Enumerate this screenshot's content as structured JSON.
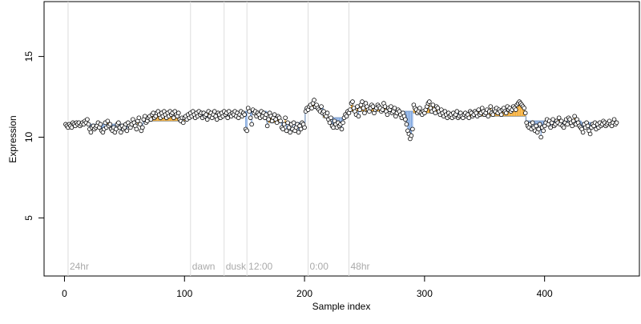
{
  "chart_data": {
    "type": "step-scatter",
    "xlabel": "Sample index",
    "ylabel": "Expression",
    "xlim": [
      -17,
      479
    ],
    "ylim": [
      1.4,
      18.4
    ],
    "xticks": [
      0,
      100,
      200,
      300,
      400
    ],
    "yticks": [
      5,
      10,
      15
    ],
    "up_color": "#f5a623",
    "down_color": "#7ea6e0",
    "step_color": "#8fa8c8",
    "point_fill": "#ffffff",
    "annotations": [
      {
        "x": 3,
        "label": "24hr"
      },
      {
        "x": 105,
        "label": "dawn"
      },
      {
        "x": 133,
        "label": "dusk"
      },
      {
        "x": 152,
        "label": "12:00"
      },
      {
        "x": 203,
        "label": "0:00"
      },
      {
        "x": 237,
        "label": "48hr"
      }
    ],
    "steps": [
      {
        "from": 0.5,
        "to": 65.5,
        "value": 10.8
      },
      {
        "from": 65.5,
        "to": 100.5,
        "value": 11.0
      },
      {
        "from": 100.5,
        "to": 150.5,
        "value": 11.4
      },
      {
        "from": 150.5,
        "to": 168.5,
        "value": 11.6
      },
      {
        "from": 168.5,
        "to": 200.5,
        "value": 10.9
      },
      {
        "from": 200.5,
        "to": 215.5,
        "value": 11.8
      },
      {
        "from": 215.5,
        "to": 235.5,
        "value": 11.2
      },
      {
        "from": 235.5,
        "to": 290.5,
        "value": 11.6
      },
      {
        "from": 290.5,
        "to": 330.5,
        "value": 11.5
      },
      {
        "from": 330.5,
        "to": 384.5,
        "value": 11.3
      },
      {
        "from": 384.5,
        "to": 430.5,
        "value": 11.0
      },
      {
        "from": 430.5,
        "to": 460.5,
        "value": 10.9
      }
    ],
    "x": [
      1,
      2,
      3,
      4,
      5,
      6,
      7,
      8,
      9,
      10,
      11,
      12,
      13,
      14,
      15,
      16,
      17,
      18,
      19,
      20,
      21,
      22,
      23,
      24,
      25,
      26,
      27,
      28,
      29,
      30,
      31,
      32,
      33,
      34,
      35,
      36,
      37,
      38,
      39,
      40,
      41,
      42,
      43,
      44,
      45,
      46,
      47,
      48,
      49,
      50,
      51,
      52,
      53,
      54,
      55,
      56,
      57,
      58,
      59,
      60,
      61,
      62,
      63,
      64,
      65,
      66,
      67,
      68,
      69,
      70,
      71,
      72,
      73,
      74,
      75,
      76,
      77,
      78,
      79,
      80,
      81,
      82,
      83,
      84,
      85,
      86,
      87,
      88,
      89,
      90,
      91,
      92,
      93,
      94,
      95,
      96,
      97,
      98,
      99,
      100,
      101,
      102,
      103,
      104,
      105,
      106,
      107,
      108,
      109,
      110,
      111,
      112,
      113,
      114,
      115,
      116,
      117,
      118,
      119,
      120,
      121,
      122,
      123,
      124,
      125,
      126,
      127,
      128,
      129,
      130,
      131,
      132,
      133,
      134,
      135,
      136,
      137,
      138,
      139,
      140,
      141,
      142,
      143,
      144,
      145,
      146,
      147,
      148,
      149,
      150,
      151,
      152,
      153,
      154,
      155,
      156,
      157,
      158,
      159,
      160,
      161,
      162,
      163,
      164,
      165,
      166,
      167,
      168,
      169,
      170,
      171,
      172,
      173,
      174,
      175,
      176,
      177,
      178,
      179,
      180,
      181,
      182,
      183,
      184,
      185,
      186,
      187,
      188,
      189,
      190,
      191,
      192,
      193,
      194,
      195,
      196,
      197,
      198,
      199,
      200,
      201,
      202,
      203,
      204,
      205,
      206,
      207,
      208,
      209,
      210,
      211,
      212,
      213,
      214,
      215,
      216,
      217,
      218,
      219,
      220,
      221,
      222,
      223,
      224,
      225,
      226,
      227,
      228,
      229,
      230,
      231,
      232,
      233,
      234,
      235,
      236,
      237,
      238,
      239,
      240,
      241,
      242,
      243,
      244,
      245,
      246,
      247,
      248,
      249,
      250,
      251,
      252,
      253,
      254,
      255,
      256,
      257,
      258,
      259,
      260,
      261,
      262,
      263,
      264,
      265,
      266,
      267,
      268,
      269,
      270,
      271,
      272,
      273,
      274,
      275,
      276,
      277,
      278,
      279,
      280,
      281,
      282,
      283,
      284,
      285,
      286,
      287,
      288,
      289,
      290,
      291,
      292,
      293,
      294,
      295,
      296,
      297,
      298,
      299,
      300,
      301,
      302,
      303,
      304,
      305,
      306,
      307,
      308,
      309,
      310,
      311,
      312,
      313,
      314,
      315,
      316,
      317,
      318,
      319,
      320,
      321,
      322,
      323,
      324,
      325,
      326,
      327,
      328,
      329,
      330,
      331,
      332,
      333,
      334,
      335,
      336,
      337,
      338,
      339,
      340,
      341,
      342,
      343,
      344,
      345,
      346,
      347,
      348,
      349,
      350,
      351,
      352,
      353,
      354,
      355,
      356,
      357,
      358,
      359,
      360,
      361,
      362,
      363,
      364,
      365,
      366,
      367,
      368,
      369,
      370,
      371,
      372,
      373,
      374,
      375,
      376,
      377,
      378,
      379,
      380,
      381,
      382,
      383,
      384,
      385,
      386,
      387,
      388,
      389,
      390,
      391,
      392,
      393,
      394,
      395,
      396,
      397,
      398,
      399,
      400,
      401,
      402,
      403,
      404,
      405,
      406,
      407,
      408,
      409,
      410,
      411,
      412,
      413,
      414,
      415,
      416,
      417,
      418,
      419,
      420,
      421,
      422,
      423,
      424,
      425,
      426,
      427,
      428,
      429,
      430,
      431,
      432,
      433,
      434,
      435,
      436,
      437,
      438,
      439,
      440,
      441,
      442,
      443,
      444,
      445,
      446,
      447,
      448,
      449,
      450,
      451,
      452,
      453,
      454,
      455,
      456,
      457,
      458,
      459,
      460
    ],
    "values": [
      10.8,
      10.7,
      10.6,
      10.8,
      10.7,
      10.6,
      10.9,
      10.8,
      10.7,
      10.9,
      10.8,
      10.9,
      10.7,
      10.8,
      10.9,
      10.8,
      11.0,
      10.9,
      11.1,
      10.8,
      10.5,
      10.3,
      10.6,
      10.7,
      10.5,
      10.6,
      10.7,
      10.9,
      10.6,
      10.8,
      10.4,
      10.3,
      10.5,
      10.9,
      10.6,
      11.0,
      10.7,
      10.8,
      10.5,
      10.4,
      10.6,
      10.3,
      10.5,
      10.8,
      10.9,
      10.6,
      10.3,
      10.7,
      10.5,
      10.6,
      10.8,
      10.4,
      10.9,
      10.7,
      10.6,
      10.8,
      11.1,
      10.9,
      10.7,
      10.5,
      11.0,
      11.2,
      10.8,
      10.4,
      10.6,
      11.1,
      11.3,
      10.9,
      11.0,
      11.2,
      11.3,
      11.1,
      11.4,
      11.5,
      11.2,
      11.3,
      11.5,
      11.6,
      11.4,
      11.2,
      11.5,
      11.3,
      11.6,
      11.4,
      11.2,
      11.5,
      11.3,
      11.6,
      11.4,
      11.5,
      11.2,
      11.6,
      11.4,
      11.3,
      11.5,
      11.1,
      11.0,
      11.2,
      10.9,
      11.2,
      11.3,
      11.1,
      11.4,
      11.2,
      11.5,
      11.3,
      11.6,
      11.4,
      11.2,
      11.5,
      11.3,
      11.6,
      11.4,
      11.5,
      11.2,
      11.5,
      11.3,
      11.4,
      11.1,
      11.6,
      11.3,
      11.5,
      11.2,
      11.4,
      11.6,
      11.3,
      11.1,
      11.5,
      11.4,
      11.2,
      11.5,
      11.3,
      11.6,
      11.4,
      11.5,
      11.2,
      11.6,
      11.4,
      11.3,
      11.5,
      11.4,
      11.6,
      11.3,
      11.5,
      11.2,
      11.4,
      11.6,
      11.3,
      11.5,
      11.4,
      10.5,
      10.4,
      11.8,
      11.6,
      11.2,
      10.8,
      11.7,
      11.5,
      11.6,
      11.3,
      11.5,
      11.4,
      11.2,
      11.6,
      11.3,
      11.5,
      11.2,
      11.4,
      10.7,
      11.1,
      11.5,
      11.3,
      11.0,
      11.2,
      11.4,
      11.1,
      10.9,
      11.3,
      11.2,
      11.0,
      10.6,
      10.5,
      10.8,
      11.2,
      10.4,
      10.9,
      10.6,
      10.3,
      10.8,
      10.5,
      10.9,
      10.4,
      10.6,
      10.8,
      10.3,
      10.7,
      10.5,
      10.9,
      10.8,
      10.6,
      11.6,
      11.8,
      11.7,
      11.9,
      12.0,
      11.8,
      12.1,
      12.3,
      11.9,
      12.0,
      11.8,
      11.7,
      11.6,
      11.9,
      11.5,
      11.6,
      11.4,
      11.3,
      11.5,
      11.1,
      10.9,
      11.2,
      10.7,
      10.6,
      11.0,
      10.8,
      10.6,
      10.9,
      10.7,
      10.8,
      10.5,
      10.9,
      11.2,
      11.4,
      11.3,
      11.6,
      11.5,
      11.7,
      12.1,
      12.2,
      11.8,
      11.6,
      11.4,
      11.9,
      11.3,
      11.7,
      12.0,
      12.2,
      11.8,
      11.5,
      12.1,
      11.9,
      11.7,
      11.6,
      11.8,
      12.0,
      11.9,
      11.5,
      11.7,
      11.8,
      12.0,
      11.9,
      11.8,
      11.6,
      11.7,
      12.1,
      11.9,
      11.6,
      11.4,
      11.8,
      11.7,
      11.9,
      11.5,
      11.6,
      11.8,
      11.3,
      11.5,
      11.7,
      11.6,
      11.4,
      11.2,
      11.5,
      11.3,
      11.1,
      10.8,
      10.4,
      10.2,
      9.9,
      10.1,
      10.5,
      12.0,
      11.8,
      11.7,
      11.5,
      11.6,
      11.8,
      11.5,
      11.4,
      11.6,
      11.5,
      11.7,
      11.9,
      12.1,
      12.2,
      11.8,
      11.6,
      12.0,
      11.7,
      11.5,
      11.9,
      11.8,
      11.6,
      11.4,
      11.7,
      11.5,
      11.3,
      11.6,
      11.4,
      11.2,
      11.5,
      11.3,
      11.4,
      11.2,
      11.5,
      11.3,
      11.4,
      11.6,
      11.2,
      11.3,
      11.5,
      11.3,
      11.2,
      11.4,
      11.5,
      11.3,
      11.4,
      11.2,
      11.6,
      11.5,
      11.3,
      11.4,
      11.6,
      11.5,
      11.3,
      11.7,
      11.4,
      11.5,
      11.8,
      11.6,
      11.4,
      11.5,
      11.7,
      11.3,
      11.6,
      11.9,
      11.5,
      11.4,
      11.7,
      11.6,
      11.8,
      11.5,
      11.7,
      11.6,
      11.4,
      11.7,
      11.8,
      11.6,
      11.5,
      11.9,
      11.7,
      11.8,
      11.6,
      11.7,
      11.9,
      11.8,
      11.7,
      12.0,
      12.1,
      12.2,
      12.1,
      12.0,
      11.9,
      11.8,
      11.5,
      10.9,
      10.7,
      10.6,
      10.8,
      10.5,
      10.9,
      10.6,
      10.4,
      10.7,
      10.3,
      10.5,
      10.8,
      10.0,
      10.6,
      10.4,
      10.7,
      10.9,
      11.1,
      10.8,
      11.0,
      10.6,
      10.9,
      11.1,
      10.7,
      10.8,
      11.0,
      10.9,
      11.2,
      10.8,
      11.0,
      10.7,
      10.6,
      10.9,
      11.1,
      10.8,
      11.2,
      11.1,
      10.9,
      10.7,
      11.0,
      11.3,
      10.8,
      11.1,
      10.9,
      10.7,
      10.6,
      10.5,
      10.3,
      10.8,
      10.6,
      10.9,
      10.7,
      10.4,
      10.2,
      10.6,
      10.8,
      10.7,
      10.9,
      10.5,
      10.8,
      10.6,
      10.9,
      10.7,
      10.8,
      11.0,
      10.9,
      10.7,
      10.8,
      10.9,
      11.0,
      10.8,
      10.7,
      10.9,
      11.1,
      10.8,
      10.9
    ]
  }
}
